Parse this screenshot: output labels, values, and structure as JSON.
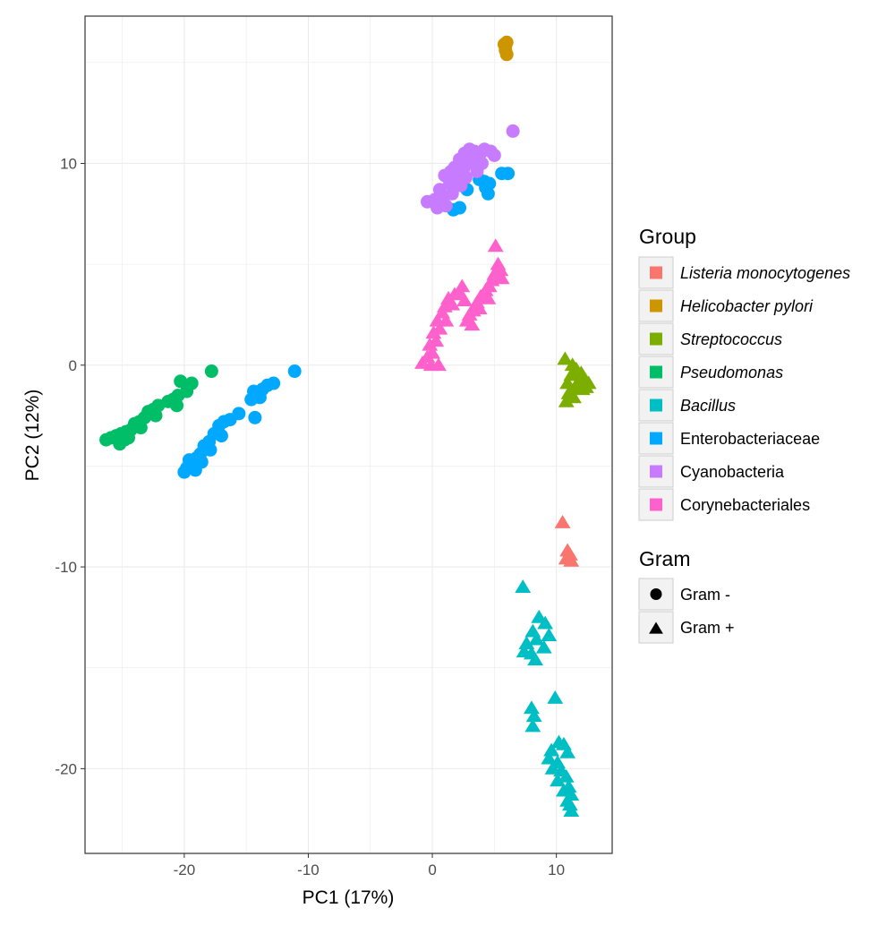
{
  "chart_data": {
    "type": "scatter",
    "xlabel": "PC1 (17%)",
    "ylabel": "PC2 (12%)",
    "xlim": [
      -28,
      14.5
    ],
    "ylim": [
      -24.2,
      17.3
    ],
    "x_ticks": [
      -20,
      -10,
      0,
      10
    ],
    "y_ticks": [
      -20,
      -10,
      0,
      10
    ],
    "x_tick_labels": [
      "-20",
      "-10",
      "0",
      "10"
    ],
    "y_tick_labels": [
      "-20",
      "-10",
      "0",
      "10"
    ],
    "grid": true,
    "legend_placement": "right",
    "group_legend": {
      "title": "Group",
      "entries": [
        {
          "name": "Listeria monocytogenes",
          "color": "#F8766D",
          "italic": true
        },
        {
          "name": "Helicobacter pylori",
          "color": "#CD9600",
          "italic": true
        },
        {
          "name": "Streptococcus",
          "color": "#7CAE00",
          "italic": true
        },
        {
          "name": "Pseudomonas",
          "color": "#00BE67",
          "italic": true
        },
        {
          "name": "Bacillus",
          "color": "#00BFC4",
          "italic": true
        },
        {
          "name": "Enterobacteriaceae",
          "color": "#00A9FF",
          "italic": false
        },
        {
          "name": "Cyanobacteria",
          "color": "#C77CFF",
          "italic": false
        },
        {
          "name": "Corynebacteriales",
          "color": "#FF61CC",
          "italic": false
        }
      ]
    },
    "gram_legend": {
      "title": "Gram",
      "entries": [
        {
          "name": "Gram -",
          "shape": "circle"
        },
        {
          "name": "Gram +",
          "shape": "triangle"
        }
      ]
    },
    "series": [
      {
        "group": "Listeria monocytogenes",
        "gram": "Gram +",
        "color": "#F8766D",
        "points": [
          [
            10.5,
            -7.8
          ],
          [
            10.9,
            -9.2
          ],
          [
            11.1,
            -9.4
          ],
          [
            10.8,
            -9.6
          ],
          [
            11.2,
            -9.7
          ]
        ]
      },
      {
        "group": "Helicobacter pylori",
        "gram": "Gram -",
        "color": "#CD9600",
        "points": [
          [
            5.9,
            15.8
          ],
          [
            6.0,
            16.0
          ],
          [
            5.9,
            15.6
          ],
          [
            6.0,
            15.4
          ],
          [
            5.8,
            15.9
          ]
        ]
      },
      {
        "group": "Streptococcus",
        "gram": "Gram +",
        "color": "#7CAE00",
        "points": [
          [
            10.7,
            0.3
          ],
          [
            11.3,
            0.0
          ],
          [
            11.6,
            -0.2
          ],
          [
            12.0,
            -0.4
          ],
          [
            12.3,
            -0.7
          ],
          [
            12.6,
            -0.9
          ],
          [
            11.8,
            -0.8
          ],
          [
            11.2,
            -0.5
          ],
          [
            10.9,
            -0.9
          ],
          [
            11.5,
            -1.1
          ],
          [
            12.1,
            -1.2
          ],
          [
            11.0,
            -1.4
          ],
          [
            11.4,
            -1.6
          ],
          [
            10.8,
            -1.8
          ],
          [
            11.7,
            -1.0
          ],
          [
            12.4,
            -1.1
          ]
        ]
      },
      {
        "group": "Pseudomonas",
        "gram": "Gram -",
        "color": "#00BE67",
        "points": [
          [
            -17.8,
            -0.3
          ],
          [
            -19.4,
            -0.9
          ],
          [
            -20.3,
            -0.8
          ],
          [
            -19.8,
            -1.3
          ],
          [
            -20.5,
            -1.5
          ],
          [
            -20.9,
            -1.7
          ],
          [
            -21.3,
            -1.8
          ],
          [
            -20.6,
            -2.0
          ],
          [
            -22.1,
            -2.0
          ],
          [
            -22.5,
            -2.2
          ],
          [
            -22.9,
            -2.3
          ],
          [
            -22.3,
            -2.5
          ],
          [
            -23.2,
            -2.6
          ],
          [
            -23.6,
            -2.8
          ],
          [
            -24.0,
            -2.9
          ],
          [
            -23.5,
            -3.1
          ],
          [
            -24.3,
            -3.2
          ],
          [
            -24.7,
            -3.3
          ],
          [
            -25.1,
            -3.4
          ],
          [
            -24.5,
            -3.6
          ],
          [
            -25.5,
            -3.5
          ],
          [
            -25.9,
            -3.6
          ],
          [
            -26.3,
            -3.7
          ],
          [
            -25.2,
            -3.9
          ],
          [
            -24.8,
            -3.7
          ]
        ]
      },
      {
        "group": "Bacillus",
        "gram": "Gram +",
        "color": "#00BFC4",
        "points": [
          [
            7.3,
            -11.0
          ],
          [
            8.6,
            -12.5
          ],
          [
            9.1,
            -12.8
          ],
          [
            8.1,
            -13.2
          ],
          [
            9.4,
            -13.4
          ],
          [
            8.4,
            -13.6
          ],
          [
            7.6,
            -13.8
          ],
          [
            9.0,
            -14.0
          ],
          [
            8.0,
            -14.3
          ],
          [
            8.3,
            -14.6
          ],
          [
            7.4,
            -14.2
          ],
          [
            9.9,
            -16.5
          ],
          [
            8.0,
            -17.0
          ],
          [
            8.2,
            -17.4
          ],
          [
            8.1,
            -17.9
          ],
          [
            10.2,
            -18.7
          ],
          [
            10.6,
            -18.8
          ],
          [
            9.6,
            -19.1
          ],
          [
            10.9,
            -19.2
          ],
          [
            9.4,
            -19.5
          ],
          [
            10.1,
            -19.7
          ],
          [
            9.7,
            -20.0
          ],
          [
            10.4,
            -20.1
          ],
          [
            10.8,
            -20.4
          ],
          [
            10.1,
            -20.6
          ],
          [
            11.0,
            -20.9
          ],
          [
            10.6,
            -21.1
          ],
          [
            11.2,
            -21.3
          ],
          [
            10.9,
            -21.6
          ],
          [
            11.1,
            -21.8
          ],
          [
            11.2,
            -22.1
          ]
        ]
      },
      {
        "group": "Enterobacteriaceae",
        "gram": "Gram -",
        "color": "#00A9FF",
        "points": [
          [
            -11.1,
            -0.3
          ],
          [
            -12.8,
            -0.9
          ],
          [
            -13.3,
            -1.0
          ],
          [
            -13.7,
            -1.2
          ],
          [
            -14.4,
            -1.3
          ],
          [
            -13.9,
            -1.6
          ],
          [
            -14.6,
            -1.7
          ],
          [
            -14.3,
            -2.6
          ],
          [
            -15.6,
            -2.4
          ],
          [
            -16.3,
            -2.7
          ],
          [
            -16.8,
            -2.8
          ],
          [
            -17.2,
            -3.0
          ],
          [
            -17.0,
            -3.5
          ],
          [
            -17.6,
            -3.4
          ],
          [
            -18.0,
            -3.8
          ],
          [
            -18.4,
            -4.0
          ],
          [
            -17.9,
            -4.2
          ],
          [
            -18.7,
            -4.4
          ],
          [
            -19.0,
            -4.6
          ],
          [
            -18.6,
            -4.8
          ],
          [
            -19.3,
            -4.9
          ],
          [
            -19.8,
            -5.1
          ],
          [
            -19.6,
            -4.7
          ],
          [
            -20.0,
            -5.3
          ],
          [
            -19.1,
            -5.2
          ],
          [
            6.1,
            9.5
          ],
          [
            5.6,
            9.5
          ],
          [
            4.6,
            9.0
          ],
          [
            4.2,
            9.1
          ],
          [
            3.8,
            9.2
          ],
          [
            4.3,
            8.8
          ],
          [
            4.5,
            8.5
          ],
          [
            2.8,
            8.7
          ],
          [
            2.2,
            7.8
          ],
          [
            1.7,
            7.7
          ]
        ]
      },
      {
        "group": "Cyanobacteria",
        "gram": "Gram -",
        "color": "#C77CFF",
        "points": [
          [
            6.5,
            11.6
          ],
          [
            4.7,
            10.6
          ],
          [
            4.2,
            10.7
          ],
          [
            3.8,
            10.4
          ],
          [
            3.4,
            10.6
          ],
          [
            3.0,
            10.7
          ],
          [
            2.6,
            10.5
          ],
          [
            2.2,
            10.2
          ],
          [
            1.8,
            9.8
          ],
          [
            3.3,
            10.1
          ],
          [
            4.0,
            10.0
          ],
          [
            2.9,
            10.0
          ],
          [
            2.5,
            9.7
          ],
          [
            1.5,
            9.6
          ],
          [
            1.0,
            9.4
          ],
          [
            1.4,
            9.0
          ],
          [
            2.0,
            9.2
          ],
          [
            0.6,
            8.7
          ],
          [
            0.9,
            8.3
          ],
          [
            0.2,
            8.2
          ],
          [
            -0.4,
            8.1
          ],
          [
            0.4,
            7.8
          ],
          [
            1.1,
            7.9
          ],
          [
            1.6,
            8.5
          ],
          [
            2.7,
            9.3
          ],
          [
            3.6,
            9.6
          ],
          [
            5.0,
            10.4
          ],
          [
            2.3,
            8.9
          ]
        ]
      },
      {
        "group": "Corynebacteriales",
        "gram": "Gram +",
        "color": "#FF61CC",
        "points": [
          [
            5.1,
            5.9
          ],
          [
            5.3,
            5.0
          ],
          [
            5.5,
            4.7
          ],
          [
            5.0,
            4.5
          ],
          [
            5.6,
            4.3
          ],
          [
            4.8,
            4.2
          ],
          [
            4.6,
            3.9
          ],
          [
            4.3,
            3.7
          ],
          [
            4.5,
            3.3
          ],
          [
            3.9,
            3.4
          ],
          [
            3.6,
            3.1
          ],
          [
            3.8,
            2.8
          ],
          [
            3.3,
            2.7
          ],
          [
            3.0,
            2.5
          ],
          [
            2.8,
            2.2
          ],
          [
            3.2,
            2.0
          ],
          [
            2.6,
            3.2
          ],
          [
            2.2,
            3.6
          ],
          [
            2.4,
            3.9
          ],
          [
            1.8,
            3.5
          ],
          [
            1.3,
            3.3
          ],
          [
            1.6,
            3.0
          ],
          [
            1.0,
            2.9
          ],
          [
            0.8,
            2.6
          ],
          [
            0.4,
            2.2
          ],
          [
            0.6,
            1.8
          ],
          [
            0.1,
            1.6
          ],
          [
            0.3,
            1.2
          ],
          [
            -0.2,
            1.0
          ],
          [
            0.0,
            0.6
          ],
          [
            -0.4,
            0.4
          ],
          [
            -0.8,
            0.1
          ],
          [
            -0.1,
            0.0
          ],
          [
            0.5,
            0.0
          ],
          [
            1.1,
            2.2
          ]
        ]
      }
    ]
  }
}
